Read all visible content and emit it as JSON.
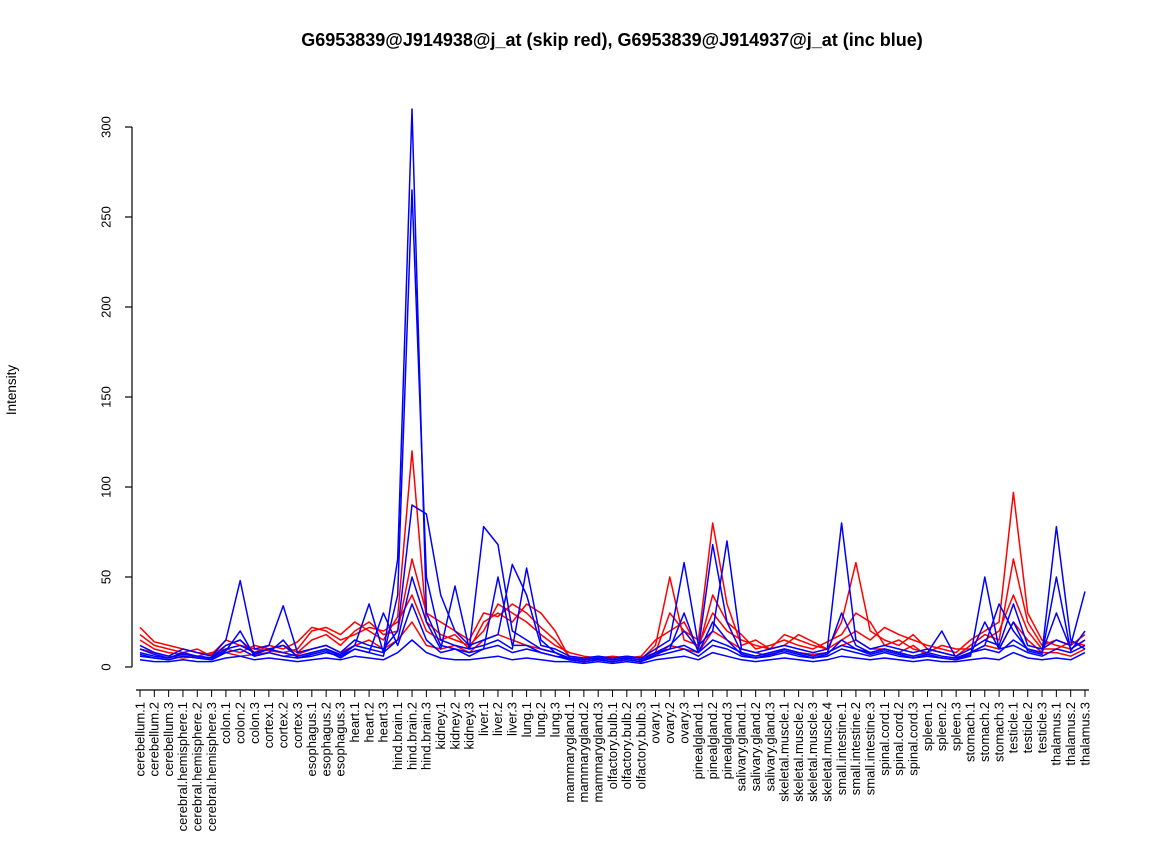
{
  "chart_data": {
    "type": "line",
    "title": "G6953839@J914938@j_at (skip red), G6953839@J914937@j_at (inc blue)",
    "ylabel": "Intensity",
    "xlabel": "",
    "grid": false,
    "legend": "none",
    "yticks": [
      0,
      50,
      100,
      150,
      200,
      250,
      300
    ],
    "ylim": [
      0,
      310
    ],
    "groups": [
      {
        "label": "G6953839@J914938@j_at (skip)",
        "color": "#FF0000"
      },
      {
        "label": "G6953839@J914937@j_at (inc)",
        "color": "#0000FF"
      }
    ],
    "categories": [
      "cerebellum.1",
      "cerebellum.2",
      "cerebellum.3",
      "cerebral.hemisphere.1",
      "cerebral.hemisphere.2",
      "cerebral.hemisphere.3",
      "colon.1",
      "colon.2",
      "colon.3",
      "cortex.1",
      "cortex.2",
      "cortex.3",
      "esophagus.1",
      "esophagus.2",
      "esophagus.3",
      "heart.1",
      "heart.2",
      "heart.3",
      "hind.brain.1",
      "hind.brain.2",
      "hind.brain.3",
      "kidney.1",
      "kidney.2",
      "kidney.3",
      "liver.1",
      "liver.2",
      "liver.3",
      "lung.1",
      "lung.2",
      "lung.3",
      "mammarygland.1",
      "mammarygland.2",
      "mammarygland.3",
      "olfactory.bulb.1",
      "olfactory.bulb.2",
      "olfactory.bulb.3",
      "ovary.1",
      "ovary.2",
      "ovary.3",
      "pinealgland.1",
      "pinealgland.2",
      "pinealgland.3",
      "salivary.gland.1",
      "salivary.gland.2",
      "salivary.gland.3",
      "skeletal.muscle.1",
      "skeletal.muscle.2",
      "skeletal.muscle.3",
      "skeletal.muscle.4",
      "small.intestine.1",
      "small.intestine.2",
      "small.intestine.3",
      "spinal.cord.1",
      "spinal.cord.2",
      "spinal.cord.3",
      "spleen.1",
      "spleen.2",
      "spleen.3",
      "stomach.1",
      "stomach.2",
      "stomach.3",
      "testicle.1",
      "testicle.2",
      "testicle.3",
      "thalamus.1",
      "thalamus.2",
      "thalamus.3"
    ],
    "series": [
      {
        "name": "red-1",
        "color": "#FF0000",
        "values": [
          22,
          14,
          12,
          10,
          8,
          7,
          15,
          12,
          10,
          9,
          8,
          10,
          20,
          22,
          18,
          25,
          20,
          15,
          28,
          120,
          25,
          18,
          15,
          12,
          20,
          35,
          30,
          25,
          18,
          12,
          8,
          6,
          5,
          6,
          5,
          4,
          12,
          50,
          15,
          12,
          30,
          20,
          15,
          12,
          10,
          18,
          15,
          12,
          10,
          15,
          20,
          15,
          22,
          18,
          15,
          12,
          10,
          8,
          15,
          20,
          25,
          97,
          30,
          15,
          12,
          10,
          15
        ]
      },
      {
        "name": "red-2",
        "color": "#FF0000",
        "values": [
          15,
          10,
          8,
          7,
          6,
          8,
          10,
          8,
          12,
          10,
          12,
          8,
          15,
          18,
          12,
          20,
          25,
          18,
          20,
          60,
          30,
          25,
          20,
          15,
          30,
          28,
          35,
          30,
          22,
          15,
          6,
          5,
          4,
          5,
          6,
          5,
          8,
          30,
          20,
          15,
          80,
          35,
          12,
          15,
          10,
          12,
          18,
          14,
          10,
          25,
          58,
          20,
          15,
          12,
          18,
          10,
          8,
          6,
          12,
          18,
          15,
          60,
          25,
          12,
          15,
          12,
          18
        ]
      },
      {
        "name": "red-3",
        "color": "#FF0000",
        "values": [
          18,
          12,
          10,
          8,
          10,
          6,
          12,
          15,
          8,
          12,
          10,
          14,
          22,
          20,
          15,
          18,
          22,
          20,
          25,
          40,
          20,
          15,
          18,
          10,
          25,
          30,
          25,
          35,
          30,
          20,
          5,
          4,
          6,
          4,
          5,
          6,
          15,
          20,
          25,
          10,
          40,
          25,
          18,
          10,
          12,
          15,
          12,
          10,
          14,
          18,
          30,
          25,
          12,
          15,
          10,
          8,
          12,
          10,
          10,
          15,
          20,
          40,
          20,
          10,
          10,
          14,
          12
        ]
      },
      {
        "name": "red-4",
        "color": "#FF0000",
        "values": [
          10,
          8,
          6,
          5,
          6,
          5,
          8,
          6,
          7,
          8,
          6,
          7,
          10,
          12,
          8,
          12,
          15,
          10,
          15,
          25,
          12,
          10,
          12,
          8,
          15,
          18,
          15,
          12,
          10,
          8,
          4,
          3,
          4,
          3,
          4,
          3,
          6,
          12,
          10,
          8,
          20,
          15,
          10,
          8,
          6,
          10,
          8,
          7,
          8,
          12,
          15,
          10,
          10,
          8,
          12,
          6,
          5,
          4,
          8,
          12,
          10,
          25,
          15,
          8,
          8,
          6,
          10
        ]
      },
      {
        "name": "blue-1",
        "color": "#0000FF",
        "values": [
          8,
          6,
          5,
          7,
          6,
          5,
          10,
          12,
          8,
          10,
          8,
          6,
          8,
          10,
          7,
          12,
          10,
          8,
          60,
          310,
          30,
          12,
          10,
          8,
          10,
          12,
          8,
          10,
          8,
          6,
          5,
          4,
          5,
          4,
          5,
          4,
          8,
          10,
          12,
          8,
          15,
          12,
          8,
          6,
          8,
          10,
          8,
          6,
          8,
          12,
          10,
          8,
          10,
          8,
          6,
          8,
          6,
          5,
          8,
          10,
          8,
          15,
          10,
          8,
          78,
          15,
          10
        ]
      },
      {
        "name": "blue-2",
        "color": "#0000FF",
        "values": [
          6,
          5,
          4,
          6,
          5,
          4,
          8,
          10,
          6,
          8,
          6,
          5,
          6,
          8,
          6,
          10,
          8,
          6,
          40,
          265,
          50,
          15,
          12,
          10,
          78,
          68,
          20,
          15,
          10,
          8,
          4,
          3,
          4,
          3,
          4,
          3,
          6,
          8,
          10,
          6,
          12,
          10,
          6,
          5,
          6,
          8,
          6,
          5,
          6,
          10,
          8,
          6,
          8,
          6,
          5,
          6,
          5,
          4,
          6,
          50,
          10,
          12,
          8,
          6,
          10,
          8,
          12
        ]
      },
      {
        "name": "blue-3",
        "color": "#0000FF",
        "values": [
          12,
          8,
          6,
          10,
          8,
          6,
          15,
          48,
          10,
          12,
          34,
          8,
          10,
          12,
          8,
          15,
          12,
          10,
          20,
          90,
          85,
          40,
          20,
          12,
          15,
          18,
          57,
          40,
          12,
          10,
          6,
          5,
          6,
          5,
          6,
          5,
          10,
          15,
          58,
          12,
          20,
          70,
          10,
          8,
          10,
          12,
          10,
          8,
          10,
          80,
          15,
          10,
          12,
          10,
          8,
          10,
          8,
          6,
          10,
          15,
          12,
          35,
          12,
          10,
          15,
          12,
          42
        ]
      },
      {
        "name": "blue-4",
        "color": "#0000FF",
        "values": [
          10,
          7,
          5,
          8,
          6,
          5,
          12,
          15,
          7,
          10,
          12,
          6,
          8,
          10,
          6,
          12,
          35,
          8,
          15,
          50,
          25,
          10,
          45,
          10,
          12,
          15,
          10,
          55,
          15,
          8,
          5,
          4,
          5,
          4,
          5,
          4,
          8,
          12,
          20,
          10,
          68,
          25,
          8,
          6,
          8,
          10,
          8,
          6,
          8,
          30,
          12,
          8,
          10,
          8,
          6,
          8,
          20,
          5,
          8,
          12,
          35,
          20,
          10,
          8,
          30,
          10,
          15
        ]
      },
      {
        "name": "blue-5",
        "color": "#0000FF",
        "values": [
          7,
          5,
          4,
          6,
          5,
          4,
          9,
          20,
          6,
          8,
          15,
          5,
          7,
          9,
          5,
          10,
          8,
          30,
          12,
          35,
          15,
          8,
          10,
          6,
          10,
          50,
          12,
          12,
          8,
          6,
          4,
          3,
          4,
          3,
          4,
          3,
          7,
          10,
          30,
          8,
          25,
          15,
          7,
          5,
          7,
          9,
          7,
          5,
          7,
          15,
          10,
          7,
          9,
          7,
          5,
          7,
          5,
          4,
          7,
          25,
          10,
          25,
          9,
          7,
          50,
          9,
          20
        ]
      },
      {
        "name": "blue-6",
        "color": "#0000FF",
        "values": [
          4,
          3,
          3,
          4,
          3,
          3,
          5,
          6,
          4,
          5,
          4,
          3,
          4,
          5,
          4,
          6,
          5,
          4,
          8,
          15,
          8,
          5,
          4,
          4,
          5,
          6,
          4,
          5,
          4,
          3,
          3,
          2,
          3,
          2,
          3,
          2,
          4,
          5,
          6,
          4,
          8,
          6,
          4,
          3,
          4,
          5,
          4,
          3,
          4,
          6,
          5,
          4,
          5,
          4,
          3,
          4,
          3,
          3,
          4,
          5,
          4,
          8,
          5,
          4,
          5,
          4,
          8
        ]
      }
    ]
  }
}
